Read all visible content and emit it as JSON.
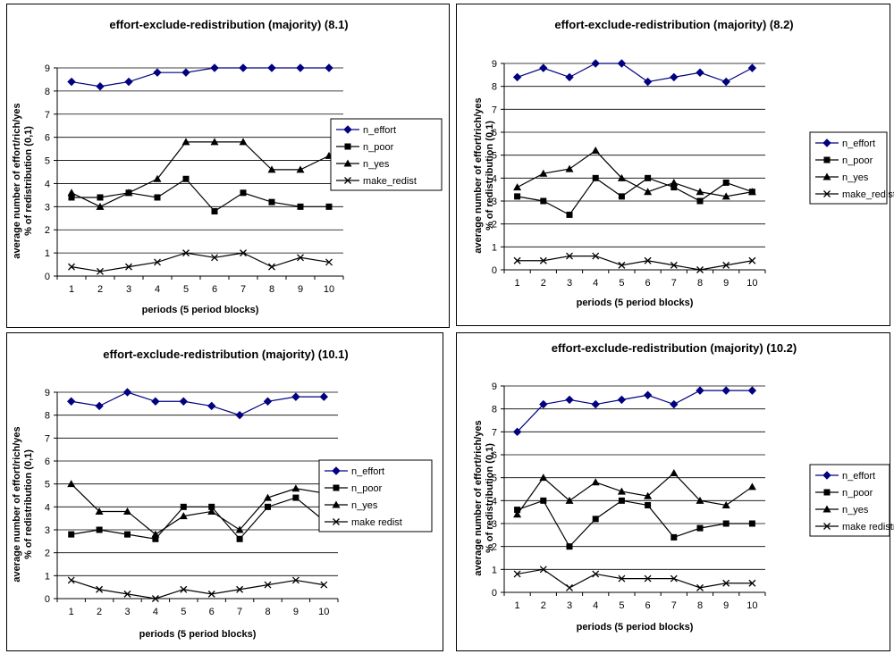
{
  "chart_data": [
    {
      "type": "line",
      "title": "effort-exclude-redistribution (majority) (8.1)",
      "xlabel": "periods (5 period blocks)",
      "ylabel": [
        "average number of effort/rich/yes",
        "% of redistribution (0,1)"
      ],
      "categories": [
        "1",
        "2",
        "3",
        "4",
        "5",
        "6",
        "7",
        "8",
        "9",
        "10"
      ],
      "ylim": [
        0,
        9
      ],
      "yticks": [
        "0",
        "1",
        "2",
        "3",
        "4",
        "5",
        "6",
        "7",
        "8",
        "9"
      ],
      "grid": true,
      "legend": "right",
      "series": [
        {
          "name": "n_effort",
          "marker": "diamond",
          "color": "#000080",
          "values": [
            8.4,
            8.2,
            8.4,
            8.8,
            8.8,
            9.0,
            9.0,
            9.0,
            9.0,
            9.0
          ]
        },
        {
          "name": "n_poor",
          "marker": "square",
          "color": "#000000",
          "values": [
            3.4,
            3.4,
            3.6,
            3.4,
            4.2,
            2.8,
            3.6,
            3.2,
            3.0,
            3.0
          ]
        },
        {
          "name": "n_yes",
          "marker": "triangle",
          "color": "#000000",
          "values": [
            3.6,
            3.0,
            3.6,
            4.2,
            5.8,
            5.8,
            5.8,
            4.6,
            4.6,
            5.2
          ]
        },
        {
          "name": "make_redist",
          "marker": "x",
          "color": "#000000",
          "values": [
            0.4,
            0.2,
            0.4,
            0.6,
            1.0,
            0.8,
            1.0,
            0.4,
            0.8,
            0.6
          ]
        }
      ]
    },
    {
      "type": "line",
      "title": "effort-exclude-redistribution (majority) (8.2)",
      "xlabel": "periods (5 period blocks)",
      "ylabel": [
        "average number of effort/rich/yes",
        "% of redistribution (0,1)"
      ],
      "categories": [
        "1",
        "2",
        "3",
        "4",
        "5",
        "6",
        "7",
        "8",
        "9",
        "10"
      ],
      "ylim": [
        0,
        9
      ],
      "yticks": [
        "0",
        "1",
        "2",
        "3",
        "4",
        "5",
        "6",
        "7",
        "8",
        "9"
      ],
      "grid": true,
      "legend": "right",
      "series": [
        {
          "name": "n_effort",
          "marker": "diamond",
          "color": "#000080",
          "values": [
            8.4,
            8.8,
            8.4,
            9.0,
            9.0,
            8.2,
            8.4,
            8.6,
            8.2,
            8.8
          ]
        },
        {
          "name": "n_poor",
          "marker": "square",
          "color": "#000000",
          "values": [
            3.2,
            3.0,
            2.4,
            4.0,
            3.2,
            4.0,
            3.6,
            3.0,
            3.8,
            3.4
          ]
        },
        {
          "name": "n_yes",
          "marker": "triangle",
          "color": "#000000",
          "values": [
            3.6,
            4.2,
            4.4,
            5.2,
            4.0,
            3.4,
            3.8,
            3.4,
            3.2,
            3.4
          ]
        },
        {
          "name": "make_redist",
          "marker": "x",
          "color": "#000000",
          "values": [
            0.4,
            0.4,
            0.6,
            0.6,
            0.2,
            0.4,
            0.2,
            0.0,
            0.2,
            0.4
          ]
        }
      ]
    },
    {
      "type": "line",
      "title": "effort-exclude-redistribution (majority) (10.1)",
      "xlabel": "periods (5 period blocks)",
      "ylabel": [
        "average number of effort/rich/yes",
        "% of redistribution (0,1)"
      ],
      "categories": [
        "1",
        "2",
        "3",
        "4",
        "5",
        "6",
        "7",
        "8",
        "9",
        "10"
      ],
      "ylim": [
        0,
        9
      ],
      "yticks": [
        "0",
        "1",
        "2",
        "3",
        "4",
        "5",
        "6",
        "7",
        "8",
        "9"
      ],
      "grid": true,
      "legend": "right",
      "series": [
        {
          "name": "n_effort",
          "marker": "diamond",
          "color": "#000080",
          "values": [
            8.6,
            8.4,
            9.0,
            8.6,
            8.6,
            8.4,
            8.0,
            8.6,
            8.8,
            8.8
          ]
        },
        {
          "name": "n_poor",
          "marker": "square",
          "color": "#000000",
          "values": [
            2.8,
            3.0,
            2.8,
            2.6,
            4.0,
            4.0,
            2.6,
            4.0,
            4.4,
            3.4
          ]
        },
        {
          "name": "n_yes",
          "marker": "triangle",
          "color": "#000000",
          "values": [
            5.0,
            3.8,
            3.8,
            2.8,
            3.6,
            3.8,
            3.0,
            4.4,
            4.8,
            4.6
          ]
        },
        {
          "name": "make redist",
          "marker": "x",
          "color": "#000000",
          "values": [
            0.8,
            0.4,
            0.2,
            0.0,
            0.4,
            0.2,
            0.4,
            0.6,
            0.8,
            0.6
          ]
        }
      ]
    },
    {
      "type": "line",
      "title": "effort-exclude-redistribution (majority) (10.2)",
      "xlabel": "periods (5 period blocks)",
      "ylabel": [
        "average number of effort/rich/yes",
        "% of redistribution (0,1)"
      ],
      "categories": [
        "1",
        "2",
        "3",
        "4",
        "5",
        "6",
        "7",
        "8",
        "9",
        "10"
      ],
      "ylim": [
        0,
        9
      ],
      "yticks": [
        "0",
        "1",
        "2",
        "3",
        "4",
        "5",
        "6",
        "7",
        "8",
        "9"
      ],
      "grid": true,
      "legend": "right",
      "series": [
        {
          "name": "n_effort",
          "marker": "diamond",
          "color": "#000080",
          "values": [
            7.0,
            8.2,
            8.4,
            8.2,
            8.4,
            8.6,
            8.2,
            8.8,
            8.8,
            8.8
          ]
        },
        {
          "name": "n_poor",
          "marker": "square",
          "color": "#000000",
          "values": [
            3.6,
            4.0,
            2.0,
            3.2,
            4.0,
            3.8,
            2.4,
            2.8,
            3.0,
            3.0
          ]
        },
        {
          "name": "n_yes",
          "marker": "triangle",
          "color": "#000000",
          "values": [
            3.4,
            5.0,
            4.0,
            4.8,
            4.4,
            4.2,
            5.2,
            4.0,
            3.8,
            4.6
          ]
        },
        {
          "name": "make redistri",
          "marker": "x",
          "color": "#000000",
          "values": [
            0.8,
            1.0,
            0.2,
            0.8,
            0.6,
            0.6,
            0.6,
            0.2,
            0.4,
            0.4
          ]
        }
      ]
    }
  ]
}
